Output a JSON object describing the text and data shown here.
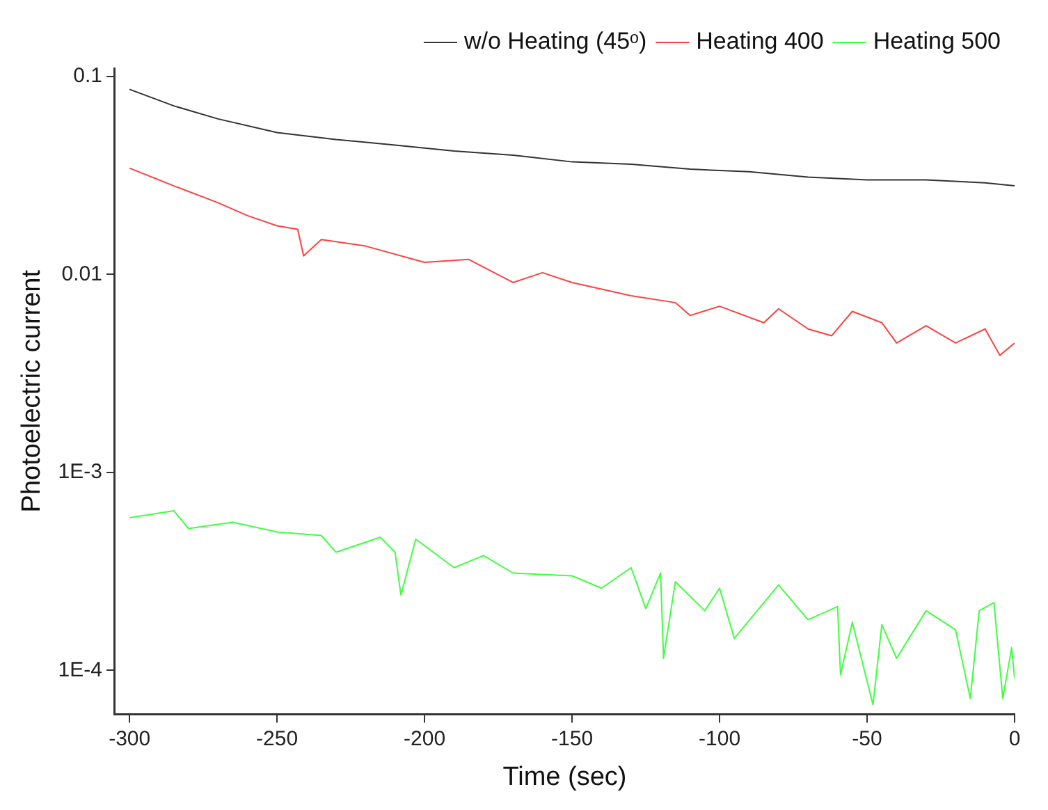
{
  "chart_data": {
    "type": "line",
    "xlabel": "Time (sec)",
    "ylabel": "Photoelectric current",
    "log": "y",
    "xlim": [
      -305,
      0
    ],
    "xticks": [
      -300,
      -250,
      -200,
      -150,
      -100,
      -50,
      0
    ],
    "ylim": [
      6e-05,
      0.11
    ],
    "yticks": [
      0.1,
      0.01,
      {
        "value": 0.001,
        "label": "1E-3"
      },
      {
        "value": 0.0001,
        "label": "1E-4"
      }
    ],
    "grid": false,
    "legend": "top right",
    "marker": "none",
    "line_style": "solid",
    "series": [
      {
        "name": "w/o Heating (45ᵒ)",
        "color": "#333333",
        "x": [
          -300,
          -285,
          -270,
          -250,
          -230,
          -210,
          -190,
          -170,
          -150,
          -130,
          -110,
          -90,
          -70,
          -50,
          -30,
          -10,
          0
        ],
        "values": [
          0.086,
          0.071,
          0.061,
          0.052,
          0.048,
          0.045,
          0.042,
          0.04,
          0.037,
          0.036,
          0.034,
          0.033,
          0.031,
          0.03,
          0.03,
          0.029,
          0.028
        ]
      },
      {
        "name": "Heating 400",
        "color": "#ff4040",
        "x": [
          -300,
          -285,
          -270,
          -260,
          -250,
          -243,
          -241,
          -235,
          -220,
          -200,
          -185,
          -170,
          -160,
          -150,
          -130,
          -115,
          -110,
          -100,
          -85,
          -80,
          -70,
          -62,
          -55,
          -45,
          -40,
          -30,
          -20,
          -10,
          -5,
          0
        ],
        "values": [
          0.0344,
          0.028,
          0.023,
          0.0198,
          0.0176,
          0.0169,
          0.0124,
          0.015,
          0.0139,
          0.0115,
          0.0119,
          0.0091,
          0.0102,
          0.0091,
          0.0078,
          0.0072,
          0.0062,
          0.0069,
          0.0057,
          0.0067,
          0.0053,
          0.0049,
          0.0065,
          0.0057,
          0.0045,
          0.0055,
          0.0045,
          0.0053,
          0.0039,
          0.0045
        ]
      },
      {
        "name": "Heating 500",
        "color": "#40ff40",
        "x": [
          -300,
          -285,
          -280,
          -265,
          -250,
          -235,
          -230,
          -215,
          -210,
          -208,
          -203,
          -190,
          -180,
          -170,
          -150,
          -140,
          -130,
          -125,
          -120,
          -119,
          -115,
          -105,
          -100,
          -95,
          -80,
          -70,
          -60,
          -59,
          -55,
          -48,
          -45,
          -40,
          -30,
          -20,
          -15,
          -12,
          -7,
          -4,
          -1,
          0
        ],
        "values": [
          0.00059,
          0.00064,
          0.00052,
          0.00056,
          0.0005,
          0.00048,
          0.000395,
          0.00047,
          0.000395,
          0.00024,
          0.00046,
          0.00033,
          0.00038,
          0.00031,
          0.0003,
          0.00026,
          0.00033,
          0.000205,
          0.00031,
          0.000115,
          0.00028,
          0.0002,
          0.00026,
          0.000145,
          0.00027,
          0.00018,
          0.00021,
          9.5e-05,
          0.000175,
          6.7e-05,
          0.00017,
          0.000115,
          0.0002,
          0.00016,
          7.2e-05,
          0.0002,
          0.00022,
          7.2e-05,
          0.00013,
          9.1e-05
        ]
      }
    ]
  }
}
